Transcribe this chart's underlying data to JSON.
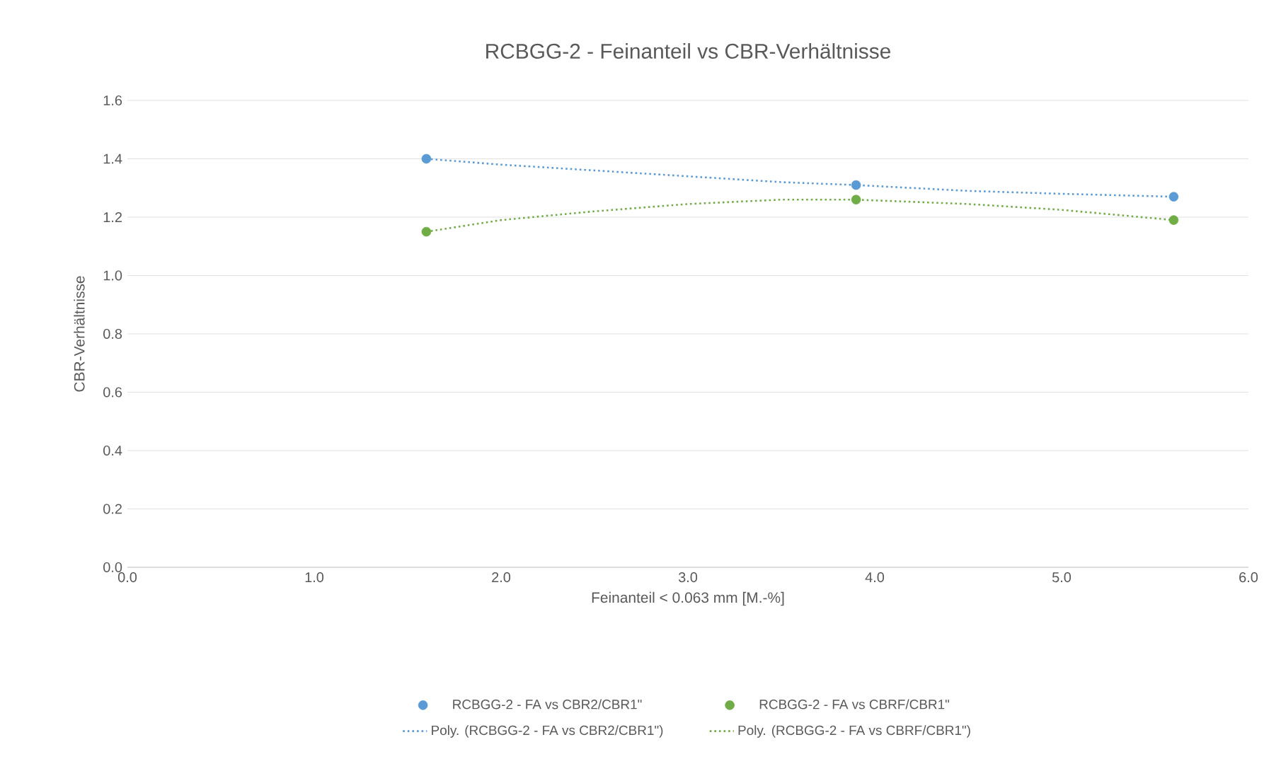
{
  "chart_data": {
    "type": "scatter",
    "title": "RCBGG-2 - Feinanteil vs CBR-Verhältnisse",
    "xlabel": "Feinanteil < 0.063 mm [M.-%]",
    "ylabel": "CBR-Verhältnisse",
    "xlim": [
      0,
      6
    ],
    "ylim": [
      0,
      1.6
    ],
    "xticks": [
      {
        "value": 0,
        "label": "0.0"
      },
      {
        "value": 1,
        "label": "1.0"
      },
      {
        "value": 2,
        "label": "2.0"
      },
      {
        "value": 3,
        "label": "3.0"
      },
      {
        "value": 4,
        "label": "4.0"
      },
      {
        "value": 5,
        "label": "5.0"
      },
      {
        "value": 6,
        "label": "6.0"
      }
    ],
    "yticks": [
      {
        "value": 0,
        "label": "0.0"
      },
      {
        "value": 0.2,
        "label": "0.2"
      },
      {
        "value": 0.4,
        "label": "0.4"
      },
      {
        "value": 0.6,
        "label": "0.6"
      },
      {
        "value": 0.8,
        "label": "0.8"
      },
      {
        "value": 1,
        "label": "1.0"
      },
      {
        "value": 1.2,
        "label": "1.2"
      },
      {
        "value": 1.4,
        "label": "1.4"
      },
      {
        "value": 1.6,
        "label": "1.6"
      }
    ],
    "grid": "y",
    "legend": "bottom",
    "line_style": "dotted",
    "series": [
      {
        "name": "RCBGG-2 - FA vs CBR2/CBR1\"",
        "type": "scatter",
        "marker": "circle",
        "color": "#5b9bd5",
        "x": [
          1.6,
          3.9,
          5.6
        ],
        "values": [
          1.4,
          1.31,
          1.27
        ]
      },
      {
        "name": "RCBGG-2 - FA vs CBRF/CBR1\"",
        "type": "scatter",
        "marker": "circle",
        "color": "#70ad47",
        "x": [
          1.6,
          3.9,
          5.6
        ],
        "values": [
          1.15,
          1.26,
          1.19
        ]
      },
      {
        "name": "Poly. (RCBGG-2 - FA vs CBR2/CBR1\")",
        "type": "line",
        "marker": "none",
        "color": "#5b9bd5",
        "x": [
          1.6,
          2.0,
          2.5,
          3.0,
          3.5,
          3.9,
          4.5,
          5.0,
          5.6
        ],
        "values": [
          1.4,
          1.38,
          1.36,
          1.34,
          1.32,
          1.31,
          1.29,
          1.28,
          1.27
        ]
      },
      {
        "name": "Poly. (RCBGG-2 - FA vs CBRF/CBR1\")",
        "type": "line",
        "marker": "none",
        "color": "#70ad47",
        "x": [
          1.6,
          2.0,
          2.5,
          3.0,
          3.5,
          3.9,
          4.5,
          5.0,
          5.6
        ],
        "values": [
          1.15,
          1.19,
          1.22,
          1.245,
          1.26,
          1.26,
          1.245,
          1.225,
          1.19
        ]
      }
    ]
  }
}
